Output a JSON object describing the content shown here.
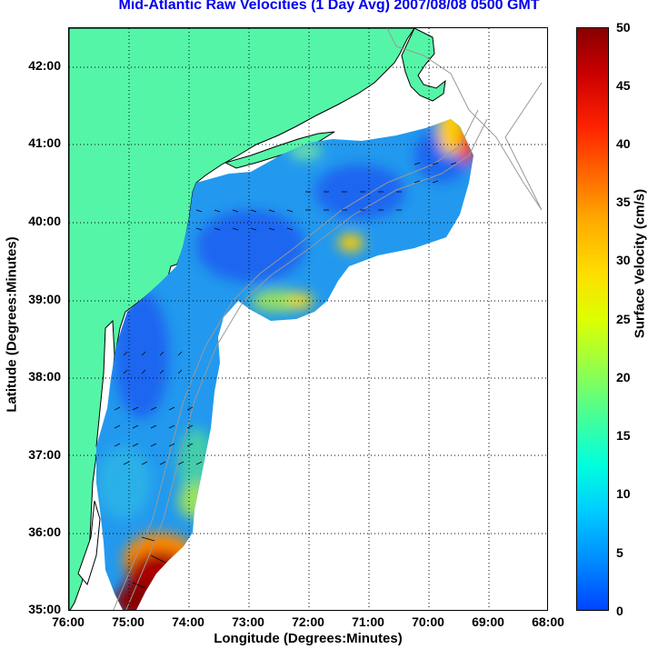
{
  "title": "Mid-Atlantic Raw Velocities (1 Day Avg) 2007/08/08 0500 GMT",
  "x_axis": {
    "label": "Longitude (Degrees:Minutes)",
    "ticks": [
      "76:00",
      "75:00",
      "74:00",
      "73:00",
      "72:00",
      "71:00",
      "70:00",
      "69:00",
      "68:00"
    ]
  },
  "y_axis": {
    "label": "Latitude (Degrees:Minutes)",
    "ticks": [
      "42:00",
      "41:00",
      "40:00",
      "39:00",
      "38:00",
      "37:00",
      "36:00",
      "35:00"
    ]
  },
  "colorbar": {
    "label": "Surface Velocity (cm/s)",
    "ticks": [
      "50",
      "45",
      "40",
      "35",
      "30",
      "25",
      "20",
      "15",
      "10",
      "5",
      "0"
    ],
    "range": [
      0,
      50
    ]
  },
  "map_extent": {
    "lon": [
      -76,
      -68
    ],
    "lat": [
      35,
      42.5
    ]
  },
  "colors": {
    "land": "#55f5a8",
    "title": "#0000ee",
    "water_field_dominant": "#2299ee",
    "grid": "#000000",
    "bathymetry": "#999999"
  }
}
